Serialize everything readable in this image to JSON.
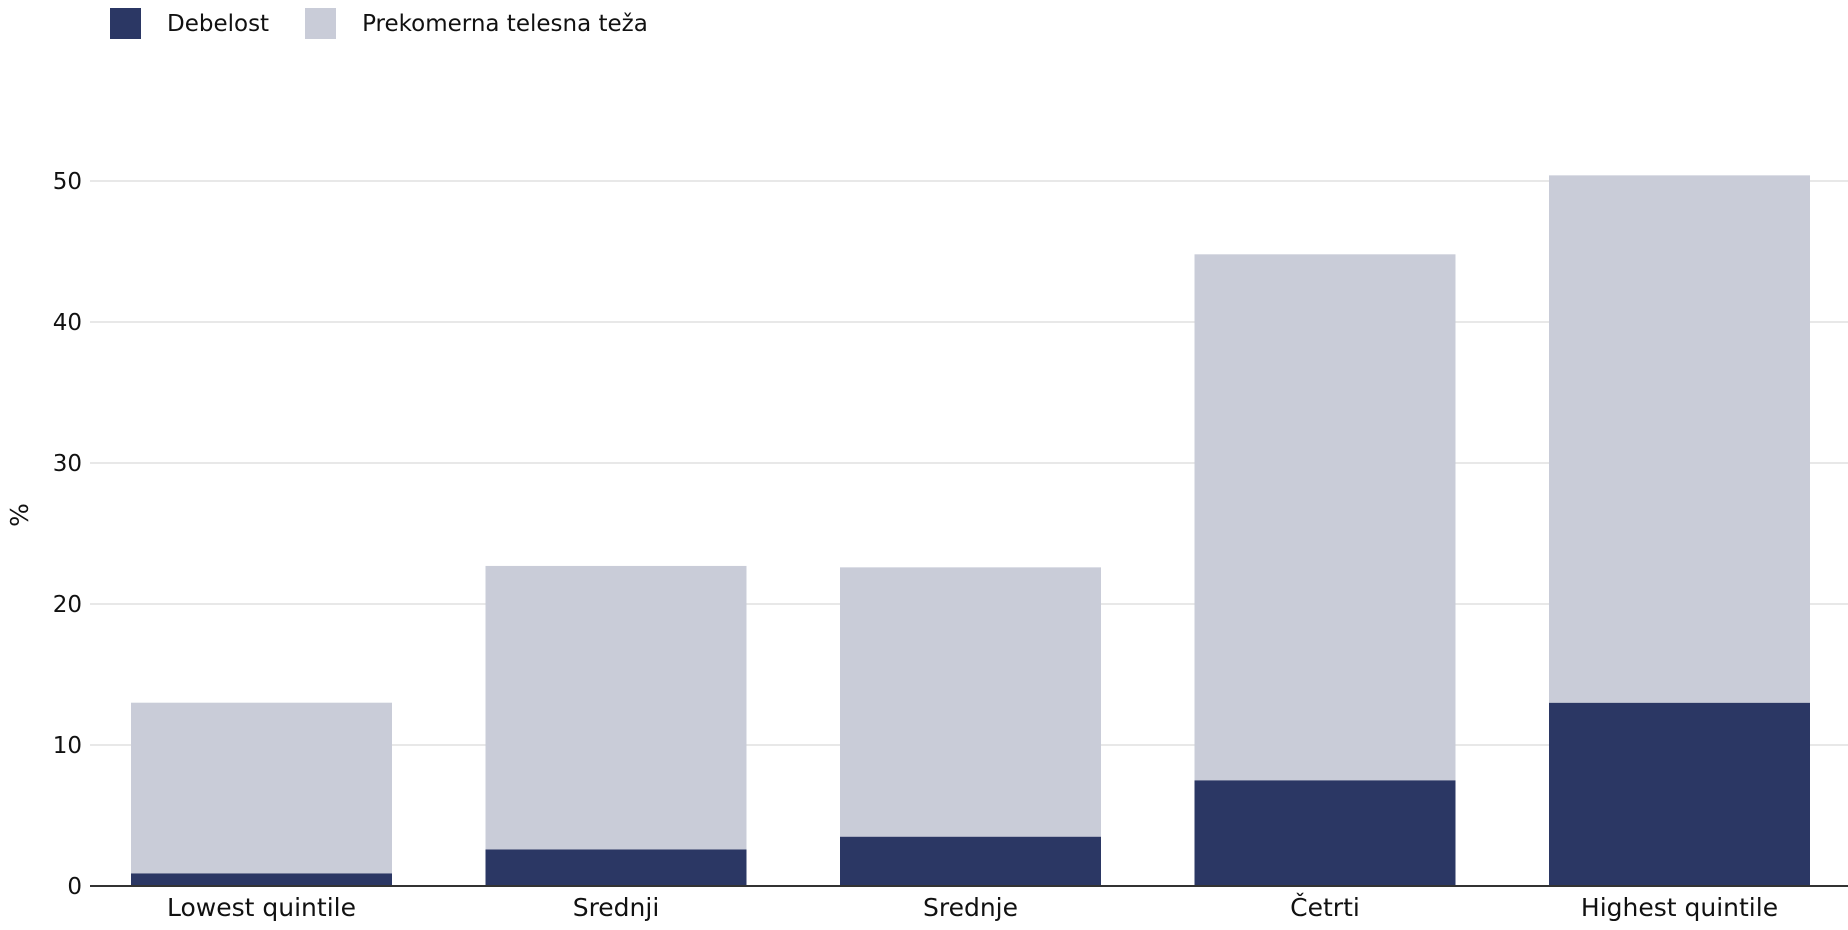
{
  "chart_data": {
    "type": "bar",
    "stacked": true,
    "categories": [
      "Lowest quintile",
      "Srednji",
      "Srednje",
      "Četrti",
      "Highest quintile"
    ],
    "series": [
      {
        "name": "Debelost",
        "color": "#2b3764",
        "values": [
          0.9,
          2.6,
          3.5,
          7.5,
          13.0
        ]
      },
      {
        "name": "Prekomerna telesna teža",
        "color": "#c9ccd8",
        "values": [
          12.1,
          20.1,
          19.1,
          37.3,
          37.4
        ]
      }
    ],
    "xlabel": "",
    "ylabel": "%",
    "ylim": [
      0,
      50
    ],
    "yticks": [
      0,
      10,
      20,
      30,
      40,
      50
    ],
    "grid": true,
    "legend_position": "top-left"
  }
}
